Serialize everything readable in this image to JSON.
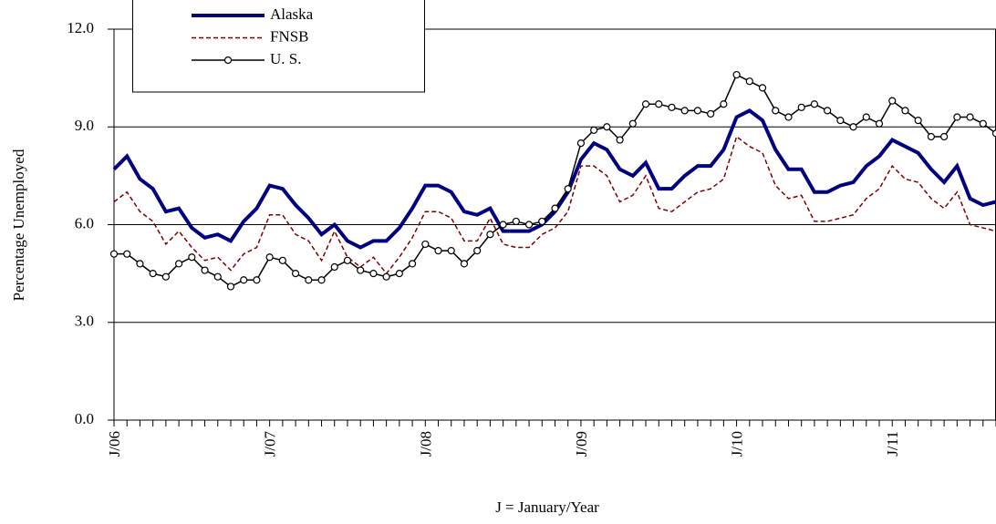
{
  "chart_data": {
    "type": "line",
    "ylabel": "Percentage Unemployed",
    "xlabel": "J = January/Year",
    "categories": [
      "J/06",
      null,
      null,
      null,
      null,
      null,
      null,
      null,
      null,
      null,
      null,
      null,
      "J/07",
      null,
      null,
      null,
      null,
      null,
      null,
      null,
      null,
      null,
      null,
      null,
      "J/08",
      null,
      null,
      null,
      null,
      null,
      null,
      null,
      null,
      null,
      null,
      null,
      "J/09",
      null,
      null,
      null,
      null,
      null,
      null,
      null,
      null,
      null,
      null,
      null,
      "J/10",
      null,
      null,
      null,
      null,
      null,
      null,
      null,
      null,
      null,
      null,
      null,
      "J/11",
      null,
      null,
      null,
      null,
      null,
      null,
      null,
      null
    ],
    "series": [
      {
        "name": "Alaska",
        "color": "#000080",
        "values": [
          7.7,
          8.1,
          7.4,
          7.1,
          6.4,
          6.5,
          5.9,
          5.6,
          5.7,
          5.5,
          6.1,
          6.5,
          7.2,
          7.1,
          6.6,
          6.2,
          5.7,
          6.0,
          5.5,
          5.3,
          5.5,
          5.5,
          5.9,
          6.5,
          7.2,
          7.2,
          7.0,
          6.4,
          6.3,
          6.5,
          5.8,
          5.8,
          5.8,
          6.0,
          6.4,
          7.0,
          8.0,
          8.5,
          8.3,
          7.7,
          7.5,
          7.9,
          7.1,
          7.1,
          7.5,
          7.8,
          7.8,
          8.3,
          9.3,
          9.5,
          9.2,
          8.3,
          7.7,
          7.7,
          7.0,
          7.0,
          7.2,
          7.3,
          7.8,
          8.1,
          8.6,
          8.4,
          8.2,
          7.7,
          7.3,
          7.8,
          6.8,
          6.6,
          6.7
        ]
      },
      {
        "name": "FNSB",
        "color": "#800000",
        "values": [
          6.7,
          7.0,
          6.4,
          6.1,
          5.4,
          5.8,
          5.3,
          4.9,
          5.0,
          4.6,
          5.1,
          5.3,
          6.3,
          6.3,
          5.7,
          5.5,
          4.9,
          5.8,
          5.0,
          4.7,
          5.0,
          4.5,
          5.0,
          5.6,
          6.4,
          6.4,
          6.2,
          5.5,
          5.5,
          6.2,
          5.4,
          5.3,
          5.3,
          5.7,
          5.9,
          6.4,
          7.8,
          7.8,
          7.5,
          6.7,
          6.9,
          7.5,
          6.5,
          6.4,
          6.7,
          7.0,
          7.1,
          7.4,
          8.7,
          8.4,
          8.2,
          7.2,
          6.8,
          6.9,
          6.1,
          6.1,
          6.2,
          6.3,
          6.8,
          7.1,
          7.8,
          7.4,
          7.3,
          6.8,
          6.5,
          7.0,
          6.0,
          5.9,
          5.8
        ]
      },
      {
        "name": "U. S.",
        "color": "#000000",
        "values": [
          5.1,
          5.1,
          4.8,
          4.5,
          4.4,
          4.8,
          5.0,
          4.6,
          4.4,
          4.1,
          4.3,
          4.3,
          5.0,
          4.9,
          4.5,
          4.3,
          4.3,
          4.7,
          4.9,
          4.6,
          4.5,
          4.4,
          4.5,
          4.8,
          5.4,
          5.2,
          5.2,
          4.8,
          5.2,
          5.7,
          6.0,
          6.1,
          6.0,
          6.1,
          6.5,
          7.1,
          8.5,
          8.9,
          9.0,
          8.6,
          9.1,
          9.7,
          9.7,
          9.6,
          9.5,
          9.5,
          9.4,
          9.7,
          10.6,
          10.4,
          10.2,
          9.5,
          9.3,
          9.6,
          9.7,
          9.5,
          9.2,
          9.0,
          9.3,
          9.1,
          9.8,
          9.5,
          9.2,
          8.7,
          8.7,
          9.3,
          9.3,
          9.1,
          8.8
        ]
      }
    ],
    "ylim": [
      0,
      12
    ],
    "yticks": [
      {
        "value": 0,
        "label": "0.0"
      },
      {
        "value": 3,
        "label": "3.0"
      },
      {
        "value": 6,
        "label": "6.0"
      },
      {
        "value": 9,
        "label": "9.0"
      },
      {
        "value": 12,
        "label": "12.0"
      }
    ],
    "grid": true
  }
}
